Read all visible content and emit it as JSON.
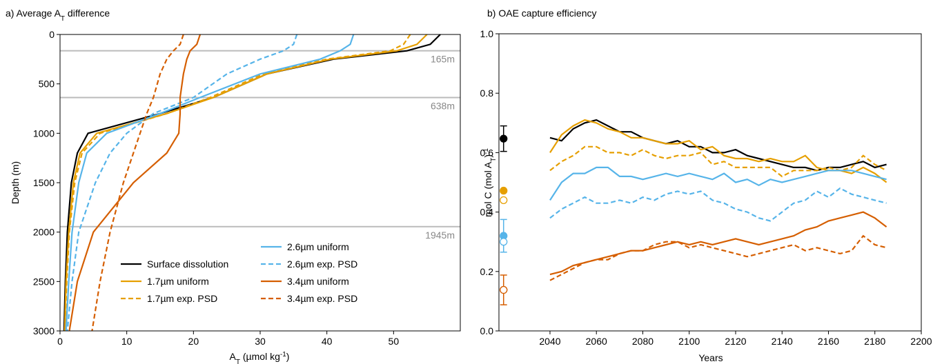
{
  "chart_data": [
    {
      "type": "line",
      "title": [
        "a) Average A",
        "T",
        " difference"
      ],
      "xlabel": [
        "A",
        "T",
        " (µmol kg",
        "-1",
        ")"
      ],
      "ylabel": "Depth (m)",
      "xlim": [
        0,
        60
      ],
      "ylim": [
        0,
        3000
      ],
      "invert_y": true,
      "xticks": [
        0,
        10,
        20,
        30,
        40,
        50
      ],
      "yticks": [
        0,
        500,
        1000,
        1500,
        2000,
        2500,
        3000
      ],
      "hlines": [
        {
          "value": 165,
          "label": "165m"
        },
        {
          "value": 638,
          "label": "638m"
        },
        {
          "value": 1945,
          "label": "1945m"
        }
      ],
      "legend": "lower right",
      "y": [
        0,
        100,
        165,
        250,
        400,
        638,
        800,
        1000,
        1200,
        1500,
        2000,
        2500,
        3000
      ],
      "series": [
        {
          "name": "Surface dissolution",
          "color": "#000000",
          "dashed": false,
          "values": [
            57,
            55.5,
            52,
            41,
            31,
            23,
            15,
            4.2,
            2.6,
            1.7,
            1.1,
            0.8,
            0.6
          ]
        },
        {
          "name": "1.7µm uniform",
          "color": "#e69f00",
          "dashed": false,
          "values": [
            55,
            53.5,
            50.5,
            40.5,
            31,
            23,
            16,
            5.5,
            3,
            2,
            1.3,
            0.9,
            0.7
          ]
        },
        {
          "name": "1.7µm exp. PSD",
          "color": "#e69f00",
          "dashed": true,
          "values": [
            52.5,
            51.5,
            49.5,
            40,
            30.5,
            22.5,
            16,
            6,
            3.3,
            2.2,
            1.4,
            1,
            0.7
          ]
        },
        {
          "name": "2.6µm uniform",
          "color": "#56b4e9",
          "dashed": false,
          "values": [
            44,
            43.5,
            42,
            39,
            30,
            21,
            15,
            7,
            4,
            2.8,
            1.8,
            1.3,
            0.9
          ]
        },
        {
          "name": "2.6µm exp. PSD",
          "color": "#56b4e9",
          "dashed": true,
          "values": [
            35.5,
            35,
            33.5,
            30,
            25,
            20,
            14,
            10,
            7.5,
            5.3,
            2.8,
            1.8,
            1.1
          ]
        },
        {
          "name": "3.4µm uniform",
          "color": "#d55e00",
          "dashed": false,
          "values": [
            21,
            20.5,
            19.5,
            19,
            18.5,
            18,
            18,
            17.8,
            16,
            11,
            5,
            2.6,
            1.4
          ]
        },
        {
          "name": "3.4µm exp. PSD",
          "color": "#d55e00",
          "dashed": true,
          "values": [
            18.5,
            18,
            17,
            16,
            15,
            14,
            13,
            12,
            11,
            9.5,
            7.5,
            6,
            4.8
          ]
        }
      ]
    },
    {
      "type": "line",
      "title": "b) OAE capture efficiency",
      "xlabel": "Years",
      "ylabel": [
        "mol C (mol A",
        "T",
        ")",
        "-1"
      ],
      "xlim": [
        2018,
        2200
      ],
      "ylim": [
        0,
        1
      ],
      "xticks": [
        2040,
        2060,
        2080,
        2100,
        2120,
        2140,
        2160,
        2180,
        2200
      ],
      "yticks": [
        {
          "value": 0,
          "label": "0.0"
        },
        {
          "value": 0.2,
          "label": "0.2"
        },
        {
          "value": 0.4,
          "label": "0.4"
        },
        {
          "value": 0.6,
          "label": "0.6"
        },
        {
          "value": 0.8,
          "label": "0.8"
        },
        {
          "value": 1,
          "label": "1.0"
        }
      ],
      "x": [
        2040,
        2045,
        2050,
        2055,
        2060,
        2065,
        2070,
        2075,
        2080,
        2085,
        2090,
        2095,
        2100,
        2105,
        2110,
        2115,
        2120,
        2125,
        2130,
        2135,
        2140,
        2145,
        2150,
        2155,
        2160,
        2165,
        2170,
        2175,
        2180,
        2185
      ],
      "series": [
        {
          "color": "#000000",
          "dashed": false,
          "values": [
            0.65,
            0.64,
            0.68,
            0.7,
            0.71,
            0.69,
            0.67,
            0.67,
            0.65,
            0.64,
            0.63,
            0.64,
            0.62,
            0.62,
            0.6,
            0.6,
            0.61,
            0.59,
            0.58,
            0.57,
            0.56,
            0.55,
            0.55,
            0.54,
            0.55,
            0.55,
            0.56,
            0.57,
            0.55,
            0.56
          ]
        },
        {
          "color": "#e69f00",
          "dashed": false,
          "values": [
            0.6,
            0.66,
            0.69,
            0.71,
            0.7,
            0.68,
            0.67,
            0.65,
            0.65,
            0.64,
            0.63,
            0.63,
            0.64,
            0.61,
            0.62,
            0.59,
            0.58,
            0.58,
            0.57,
            0.58,
            0.57,
            0.57,
            0.59,
            0.55,
            0.54,
            0.54,
            0.53,
            0.55,
            0.53,
            0.5
          ]
        },
        {
          "color": "#e69f00",
          "dashed": true,
          "values": [
            0.54,
            0.57,
            0.59,
            0.62,
            0.62,
            0.6,
            0.6,
            0.59,
            0.61,
            0.59,
            0.58,
            0.59,
            0.59,
            0.6,
            0.56,
            0.57,
            0.55,
            0.55,
            0.55,
            0.55,
            0.52,
            0.54,
            0.54,
            0.54,
            0.55,
            0.54,
            0.55,
            0.59,
            0.56,
            0.54
          ]
        },
        {
          "color": "#56b4e9",
          "dashed": false,
          "values": [
            0.44,
            0.5,
            0.53,
            0.53,
            0.55,
            0.55,
            0.52,
            0.52,
            0.51,
            0.52,
            0.53,
            0.52,
            0.53,
            0.52,
            0.51,
            0.53,
            0.5,
            0.51,
            0.49,
            0.51,
            0.5,
            0.51,
            0.52,
            0.53,
            0.54,
            0.54,
            0.54,
            0.53,
            0.52,
            0.51
          ]
        },
        {
          "color": "#56b4e9",
          "dashed": true,
          "values": [
            0.38,
            0.41,
            0.43,
            0.45,
            0.43,
            0.43,
            0.44,
            0.43,
            0.45,
            0.44,
            0.46,
            0.47,
            0.46,
            0.47,
            0.44,
            0.43,
            0.41,
            0.4,
            0.38,
            0.37,
            0.4,
            0.43,
            0.44,
            0.47,
            0.45,
            0.48,
            0.46,
            0.45,
            0.44,
            0.43
          ]
        },
        {
          "color": "#d55e00",
          "dashed": false,
          "values": [
            0.19,
            0.2,
            0.22,
            0.23,
            0.24,
            0.25,
            0.26,
            0.27,
            0.27,
            0.28,
            0.29,
            0.3,
            0.29,
            0.3,
            0.29,
            0.3,
            0.31,
            0.3,
            0.29,
            0.3,
            0.31,
            0.32,
            0.34,
            0.35,
            0.37,
            0.38,
            0.39,
            0.4,
            0.38,
            0.35
          ]
        },
        {
          "color": "#d55e00",
          "dashed": true,
          "values": [
            0.17,
            0.19,
            0.21,
            0.23,
            0.24,
            0.24,
            0.26,
            0.27,
            0.27,
            0.29,
            0.3,
            0.3,
            0.28,
            0.29,
            0.28,
            0.27,
            0.26,
            0.25,
            0.26,
            0.27,
            0.28,
            0.29,
            0.27,
            0.28,
            0.27,
            0.26,
            0.27,
            0.32,
            0.29,
            0.28
          ]
        }
      ],
      "points": [
        {
          "x": 2020,
          "value": 0.647,
          "error": 0.043,
          "color": "#000000",
          "filled": true
        },
        {
          "x": 2020,
          "value": 0.472,
          "color": "#e69f00",
          "filled": true
        },
        {
          "x": 2020,
          "value": 0.44,
          "color": "#e69f00",
          "filled": false
        },
        {
          "x": 2020,
          "value": 0.32,
          "error": 0.055,
          "color": "#56b4e9",
          "filled": true
        },
        {
          "x": 2020,
          "value": 0.3,
          "color": "#56b4e9",
          "filled": false
        },
        {
          "x": 2020,
          "value": 0.138,
          "error": 0.05,
          "color": "#d55e00",
          "filled": true
        },
        {
          "x": 2020,
          "value": 0.138,
          "color": "#d55e00",
          "filled": false
        }
      ]
    }
  ]
}
